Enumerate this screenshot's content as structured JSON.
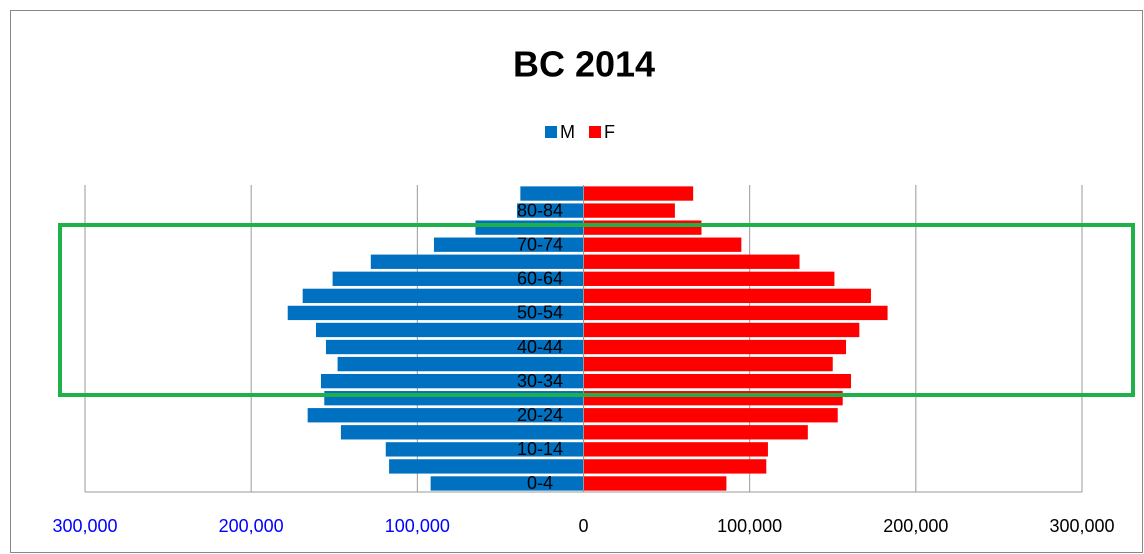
{
  "chart_data": {
    "type": "pyramid",
    "title": "BC 2014",
    "categories": [
      "0-4",
      null,
      "10-14",
      null,
      "20-24",
      null,
      "30-34",
      null,
      "40-44",
      null,
      "50-54",
      null,
      "60-64",
      null,
      "70-74",
      null,
      "80-84",
      null
    ],
    "series": [
      {
        "name": "M",
        "color": "#0070c0",
        "values": [
          -92000,
          -117000,
          -119000,
          -146000,
          -166000,
          -156000,
          -158000,
          -148000,
          -155000,
          -161000,
          -178000,
          -169000,
          -151000,
          -128000,
          -90000,
          -65000,
          -40000,
          -38000
        ]
      },
      {
        "name": "F",
        "color": "#ff0000",
        "values": [
          86000,
          110000,
          111000,
          135000,
          153000,
          156000,
          161000,
          150000,
          158000,
          166000,
          183000,
          173000,
          151000,
          130000,
          95000,
          71000,
          55000,
          66000
        ]
      }
    ],
    "xlim": [
      -300000,
      300000
    ],
    "xticks": [
      {
        "value": -300000,
        "label": "300,000"
      },
      {
        "value": -200000,
        "label": "200,000"
      },
      {
        "value": -100000,
        "label": "100,000"
      },
      0,
      {
        "value": 100000,
        "label": "100,000"
      },
      {
        "value": 200000,
        "label": "200,000"
      },
      {
        "value": 300000,
        "label": "300,000"
      }
    ],
    "negative_tick_color": "#0000ff",
    "grid": true,
    "legend": "top"
  }
}
